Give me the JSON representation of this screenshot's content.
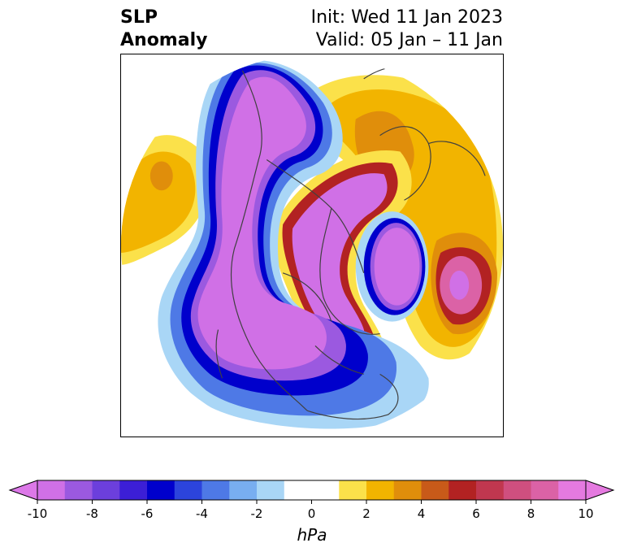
{
  "title": {
    "left_line1": "SLP",
    "left_line2": "Anomaly",
    "right_line1": "Init: Wed 11 Jan 2023",
    "right_line2": "Valid: 05 Jan – 11 Jan"
  },
  "colorbar": {
    "label": "hPa",
    "ticks": [
      "-10",
      "-8",
      "-6",
      "-4",
      "-2",
      "0",
      "2",
      "4",
      "6",
      "8",
      "10"
    ],
    "low_extend_color": "#dc78e8",
    "high_extend_color": "#e57ae0",
    "bins": [
      "#d070e6",
      "#9b59e0",
      "#6c3fdc",
      "#3c1fd6",
      "#0000cc",
      "#2c44dc",
      "#4e79e6",
      "#78aef0",
      "#a9d6f6",
      "#ffffff",
      "#ffffff",
      "#fbe14a",
      "#f2b400",
      "#e08e0b",
      "#c85a19",
      "#b22222",
      "#c0374f",
      "#cf4f7f",
      "#db62a6",
      "#e57ae0"
    ]
  },
  "map": {
    "projection": "north-polar-stereographic",
    "colors": {
      "neg_deep": "#d070e6",
      "neg_purple": "#9b59e0",
      "neg_blue": "#0000cc",
      "neg_mid": "#4e79e6",
      "neg_light": "#a9d6f6",
      "pos_yellow": "#fbe14a",
      "pos_gold": "#f2b400",
      "pos_orange": "#e08e0b",
      "pos_red": "#b22222",
      "pos_pink": "#db62a6",
      "coast": "#404040"
    }
  }
}
